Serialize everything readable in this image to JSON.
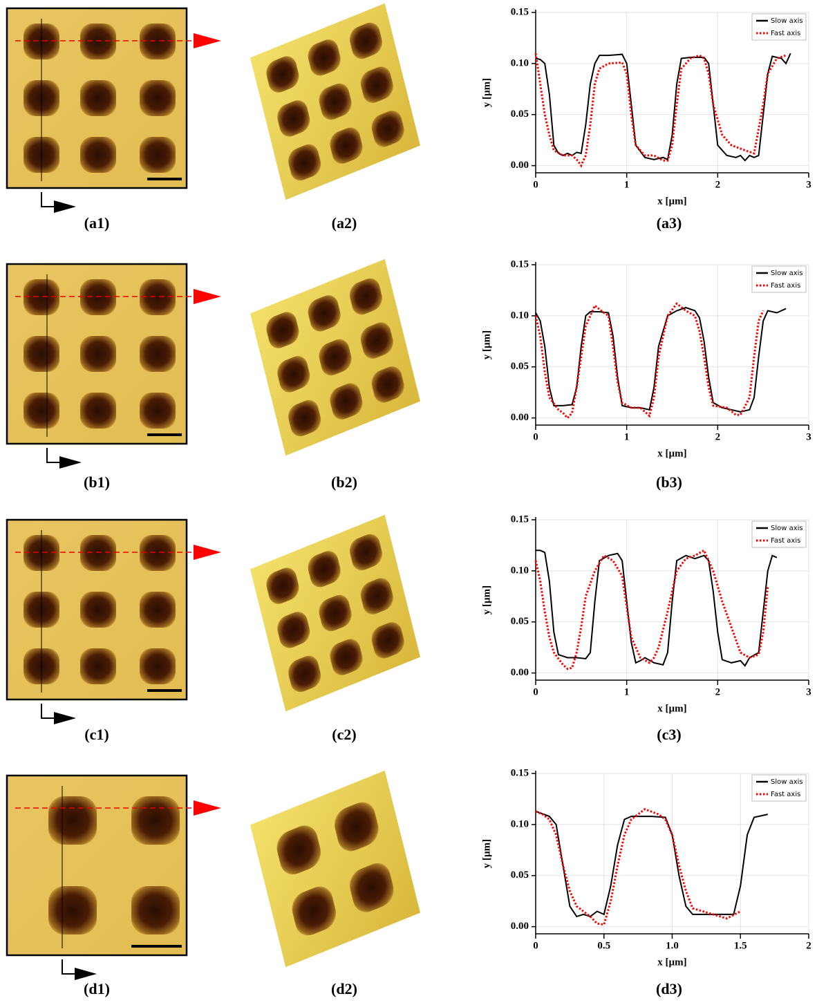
{
  "panel_labels": [
    [
      "(a1)",
      "(a2)",
      "(a3)"
    ],
    [
      "(b1)",
      "(b2)",
      "(b3)"
    ],
    [
      "(c1)",
      "(c2)",
      "(c3)"
    ],
    [
      "(d1)",
      "(d2)",
      "(d3)"
    ]
  ],
  "chart_data": [
    {
      "type": "line",
      "xlabel": "x [µm]",
      "ylabel": "y [µm]",
      "xlim": [
        0,
        3
      ],
      "ylim": [
        -0.007,
        0.15
      ],
      "xticks": [
        0,
        1,
        2,
        3
      ],
      "yticks": [
        {
          "value": 0,
          "label": "0.00"
        },
        {
          "value": 0.05,
          "label": "0.05"
        },
        {
          "value": 0.1,
          "label": "0.10"
        },
        {
          "value": 0.15,
          "label": "0.15"
        }
      ],
      "grid": true,
      "legend": "upper right",
      "series": [
        {
          "name": "Slow axis",
          "color": "#000000",
          "x": [
            0,
            0.05,
            0.1,
            0.15,
            0.2,
            0.25,
            0.3,
            0.35,
            0.4,
            0.45,
            0.5,
            0.55,
            0.6,
            0.65,
            0.7,
            0.8,
            0.95,
            1.0,
            1.05,
            1.1,
            1.2,
            1.3,
            1.4,
            1.45,
            1.5,
            1.55,
            1.6,
            1.7,
            1.85,
            1.9,
            1.95,
            2.0,
            2.1,
            2.2,
            2.25,
            2.3,
            2.35,
            2.4,
            2.45,
            2.5,
            2.55,
            2.6,
            2.7,
            2.75,
            2.8
          ],
          "values": [
            0.105,
            0.104,
            0.1,
            0.07,
            0.02,
            0.012,
            0.01,
            0.012,
            0.01,
            0.013,
            0.012,
            0.04,
            0.08,
            0.1,
            0.108,
            0.108,
            0.109,
            0.1,
            0.06,
            0.02,
            0.008,
            0.006,
            0.008,
            0.006,
            0.03,
            0.08,
            0.105,
            0.106,
            0.106,
            0.1,
            0.06,
            0.02,
            0.01,
            0.008,
            0.01,
            0.005,
            0.01,
            0.008,
            0.01,
            0.05,
            0.09,
            0.107,
            0.105,
            0.1,
            0.11
          ]
        },
        {
          "name": "Fast axis",
          "color": "#ff0000",
          "x": [
            0,
            0.05,
            0.1,
            0.15,
            0.2,
            0.3,
            0.4,
            0.45,
            0.5,
            0.55,
            0.6,
            0.65,
            0.7,
            0.8,
            0.95,
            1.0,
            1.05,
            1.1,
            1.2,
            1.3,
            1.4,
            1.45,
            1.5,
            1.55,
            1.6,
            1.7,
            1.8,
            1.85,
            1.9,
            1.95,
            2.05,
            2.15,
            2.3,
            2.4,
            2.5,
            2.55,
            2.65,
            2.75
          ],
          "values": [
            0.11,
            0.08,
            0.05,
            0.03,
            0.015,
            0.01,
            0.01,
            0.006,
            0.0,
            0.01,
            0.04,
            0.08,
            0.095,
            0.1,
            0.101,
            0.09,
            0.05,
            0.02,
            0.01,
            0.01,
            0.005,
            0.005,
            0.02,
            0.06,
            0.095,
            0.105,
            0.108,
            0.105,
            0.09,
            0.06,
            0.03,
            0.02,
            0.015,
            0.012,
            0.06,
            0.09,
            0.105,
            0.108
          ]
        }
      ]
    },
    {
      "type": "line",
      "xlabel": "x [µm]",
      "ylabel": "y [µm]",
      "xlim": [
        0,
        3
      ],
      "ylim": [
        -0.007,
        0.15
      ],
      "xticks": [
        0,
        1,
        2,
        3
      ],
      "yticks": [
        {
          "value": 0,
          "label": "0.00"
        },
        {
          "value": 0.05,
          "label": "0.05"
        },
        {
          "value": 0.1,
          "label": "0.10"
        },
        {
          "value": 0.15,
          "label": "0.15"
        }
      ],
      "grid": true,
      "legend": "upper right",
      "series": [
        {
          "name": "Slow axis",
          "color": "#000000",
          "x": [
            0,
            0.05,
            0.1,
            0.15,
            0.2,
            0.3,
            0.4,
            0.45,
            0.5,
            0.55,
            0.6,
            0.7,
            0.8,
            0.85,
            0.9,
            0.95,
            1.05,
            1.15,
            1.25,
            1.3,
            1.35,
            1.45,
            1.55,
            1.65,
            1.75,
            1.8,
            1.85,
            1.9,
            1.95,
            2.05,
            2.15,
            2.25,
            2.35,
            2.4,
            2.45,
            2.5,
            2.55,
            2.65,
            2.75
          ],
          "values": [
            0.103,
            0.095,
            0.07,
            0.03,
            0.012,
            0.012,
            0.013,
            0.03,
            0.07,
            0.1,
            0.104,
            0.104,
            0.103,
            0.08,
            0.04,
            0.012,
            0.01,
            0.01,
            0.008,
            0.03,
            0.07,
            0.1,
            0.105,
            0.108,
            0.105,
            0.098,
            0.075,
            0.04,
            0.015,
            0.01,
            0.008,
            0.006,
            0.008,
            0.02,
            0.06,
            0.095,
            0.105,
            0.103,
            0.107
          ]
        },
        {
          "name": "Fast axis",
          "color": "#ff0000",
          "x": [
            0,
            0.05,
            0.1,
            0.15,
            0.25,
            0.3,
            0.35,
            0.4,
            0.45,
            0.5,
            0.55,
            0.65,
            0.75,
            0.8,
            0.85,
            0.9,
            0.95,
            1.05,
            1.15,
            1.25,
            1.3,
            1.35,
            1.45,
            1.55,
            1.65,
            1.75,
            1.8,
            1.85,
            1.9,
            1.95,
            2.1,
            2.2,
            2.25,
            2.35,
            2.4,
            2.45,
            2.5
          ],
          "values": [
            0.1,
            0.08,
            0.045,
            0.02,
            0.008,
            0.005,
            0.0,
            0.005,
            0.03,
            0.06,
            0.09,
            0.11,
            0.103,
            0.1,
            0.07,
            0.035,
            0.015,
            0.01,
            0.01,
            0.002,
            0.02,
            0.06,
            0.1,
            0.112,
            0.105,
            0.1,
            0.085,
            0.06,
            0.03,
            0.012,
            0.01,
            0.003,
            0.003,
            0.02,
            0.06,
            0.095,
            0.105
          ]
        }
      ]
    },
    {
      "type": "line",
      "xlabel": "x [µm]",
      "ylabel": "y [µm]",
      "xlim": [
        0,
        3
      ],
      "ylim": [
        -0.007,
        0.15
      ],
      "xticks": [
        0,
        1,
        2,
        3
      ],
      "yticks": [
        {
          "value": 0,
          "label": "0.00"
        },
        {
          "value": 0.05,
          "label": "0.05"
        },
        {
          "value": 0.1,
          "label": "0.10"
        },
        {
          "value": 0.15,
          "label": "0.15"
        }
      ],
      "grid": true,
      "legend": "upper right",
      "series": [
        {
          "name": "Slow axis",
          "color": "#000000",
          "x": [
            0,
            0.05,
            0.1,
            0.15,
            0.2,
            0.25,
            0.35,
            0.45,
            0.55,
            0.6,
            0.65,
            0.7,
            0.8,
            0.9,
            0.95,
            1.0,
            1.05,
            1.1,
            1.15,
            1.2,
            1.3,
            1.4,
            1.45,
            1.5,
            1.55,
            1.65,
            1.75,
            1.85,
            1.9,
            1.95,
            2.0,
            2.05,
            2.15,
            2.25,
            2.3,
            2.35,
            2.45,
            2.5,
            2.55,
            2.6,
            2.65
          ],
          "values": [
            0.12,
            0.12,
            0.118,
            0.09,
            0.04,
            0.018,
            0.015,
            0.015,
            0.014,
            0.02,
            0.07,
            0.11,
            0.115,
            0.117,
            0.11,
            0.07,
            0.03,
            0.01,
            0.012,
            0.015,
            0.01,
            0.008,
            0.02,
            0.07,
            0.11,
            0.115,
            0.112,
            0.115,
            0.11,
            0.08,
            0.04,
            0.013,
            0.01,
            0.012,
            0.007,
            0.015,
            0.02,
            0.06,
            0.1,
            0.115,
            0.113
          ]
        },
        {
          "name": "Fast axis",
          "color": "#ff0000",
          "x": [
            0,
            0.05,
            0.1,
            0.15,
            0.2,
            0.3,
            0.35,
            0.4,
            0.45,
            0.5,
            0.55,
            0.65,
            0.75,
            0.85,
            0.95,
            1.0,
            1.05,
            1.15,
            1.25,
            1.3,
            1.35,
            1.45,
            1.55,
            1.65,
            1.75,
            1.85,
            1.95,
            2.05,
            2.15,
            2.25,
            2.35,
            2.45,
            2.5,
            2.55
          ],
          "values": [
            0.11,
            0.09,
            0.06,
            0.035,
            0.02,
            0.008,
            0.004,
            0.005,
            0.02,
            0.045,
            0.075,
            0.1,
            0.115,
            0.11,
            0.095,
            0.065,
            0.035,
            0.015,
            0.01,
            0.015,
            0.025,
            0.06,
            0.1,
            0.112,
            0.115,
            0.12,
            0.1,
            0.07,
            0.045,
            0.02,
            0.015,
            0.018,
            0.04,
            0.085
          ]
        }
      ]
    },
    {
      "type": "line",
      "xlabel": "x [µm]",
      "ylabel": "y [µm]",
      "xlim": [
        0,
        2
      ],
      "ylim": [
        -0.007,
        0.15
      ],
      "xticks": [
        0,
        0.5,
        {
          "value": 1,
          "label": "1.0"
        },
        1.5,
        2
      ],
      "yticks": [
        {
          "value": 0,
          "label": "0.00"
        },
        {
          "value": 0.05,
          "label": "0.05"
        },
        {
          "value": 0.1,
          "label": "0.10"
        },
        {
          "value": 0.15,
          "label": "0.15"
        }
      ],
      "grid": true,
      "legend": "upper right",
      "series": [
        {
          "name": "Slow axis",
          "color": "#000000",
          "x": [
            0,
            0.1,
            0.15,
            0.2,
            0.25,
            0.3,
            0.35,
            0.4,
            0.45,
            0.5,
            0.55,
            0.6,
            0.65,
            0.7,
            0.85,
            0.95,
            1.0,
            1.05,
            1.1,
            1.15,
            1.3,
            1.45,
            1.5,
            1.55,
            1.6,
            1.7
          ],
          "values": [
            0.113,
            0.108,
            0.1,
            0.06,
            0.02,
            0.01,
            0.012,
            0.01,
            0.015,
            0.012,
            0.04,
            0.08,
            0.105,
            0.108,
            0.108,
            0.107,
            0.09,
            0.05,
            0.02,
            0.012,
            0.012,
            0.012,
            0.04,
            0.09,
            0.107,
            0.11
          ]
        },
        {
          "name": "Fast axis",
          "color": "#ff0000",
          "x": [
            0,
            0.05,
            0.1,
            0.15,
            0.2,
            0.25,
            0.3,
            0.4,
            0.45,
            0.5,
            0.55,
            0.6,
            0.65,
            0.7,
            0.8,
            0.9,
            0.95,
            1.0,
            1.05,
            1.1,
            1.15,
            1.3,
            1.4,
            1.5
          ],
          "values": [
            0.113,
            0.11,
            0.105,
            0.09,
            0.06,
            0.035,
            0.02,
            0.01,
            0.003,
            0.002,
            0.025,
            0.06,
            0.09,
            0.105,
            0.115,
            0.11,
            0.105,
            0.09,
            0.06,
            0.035,
            0.018,
            0.012,
            0.008,
            0.015
          ]
        }
      ]
    }
  ]
}
